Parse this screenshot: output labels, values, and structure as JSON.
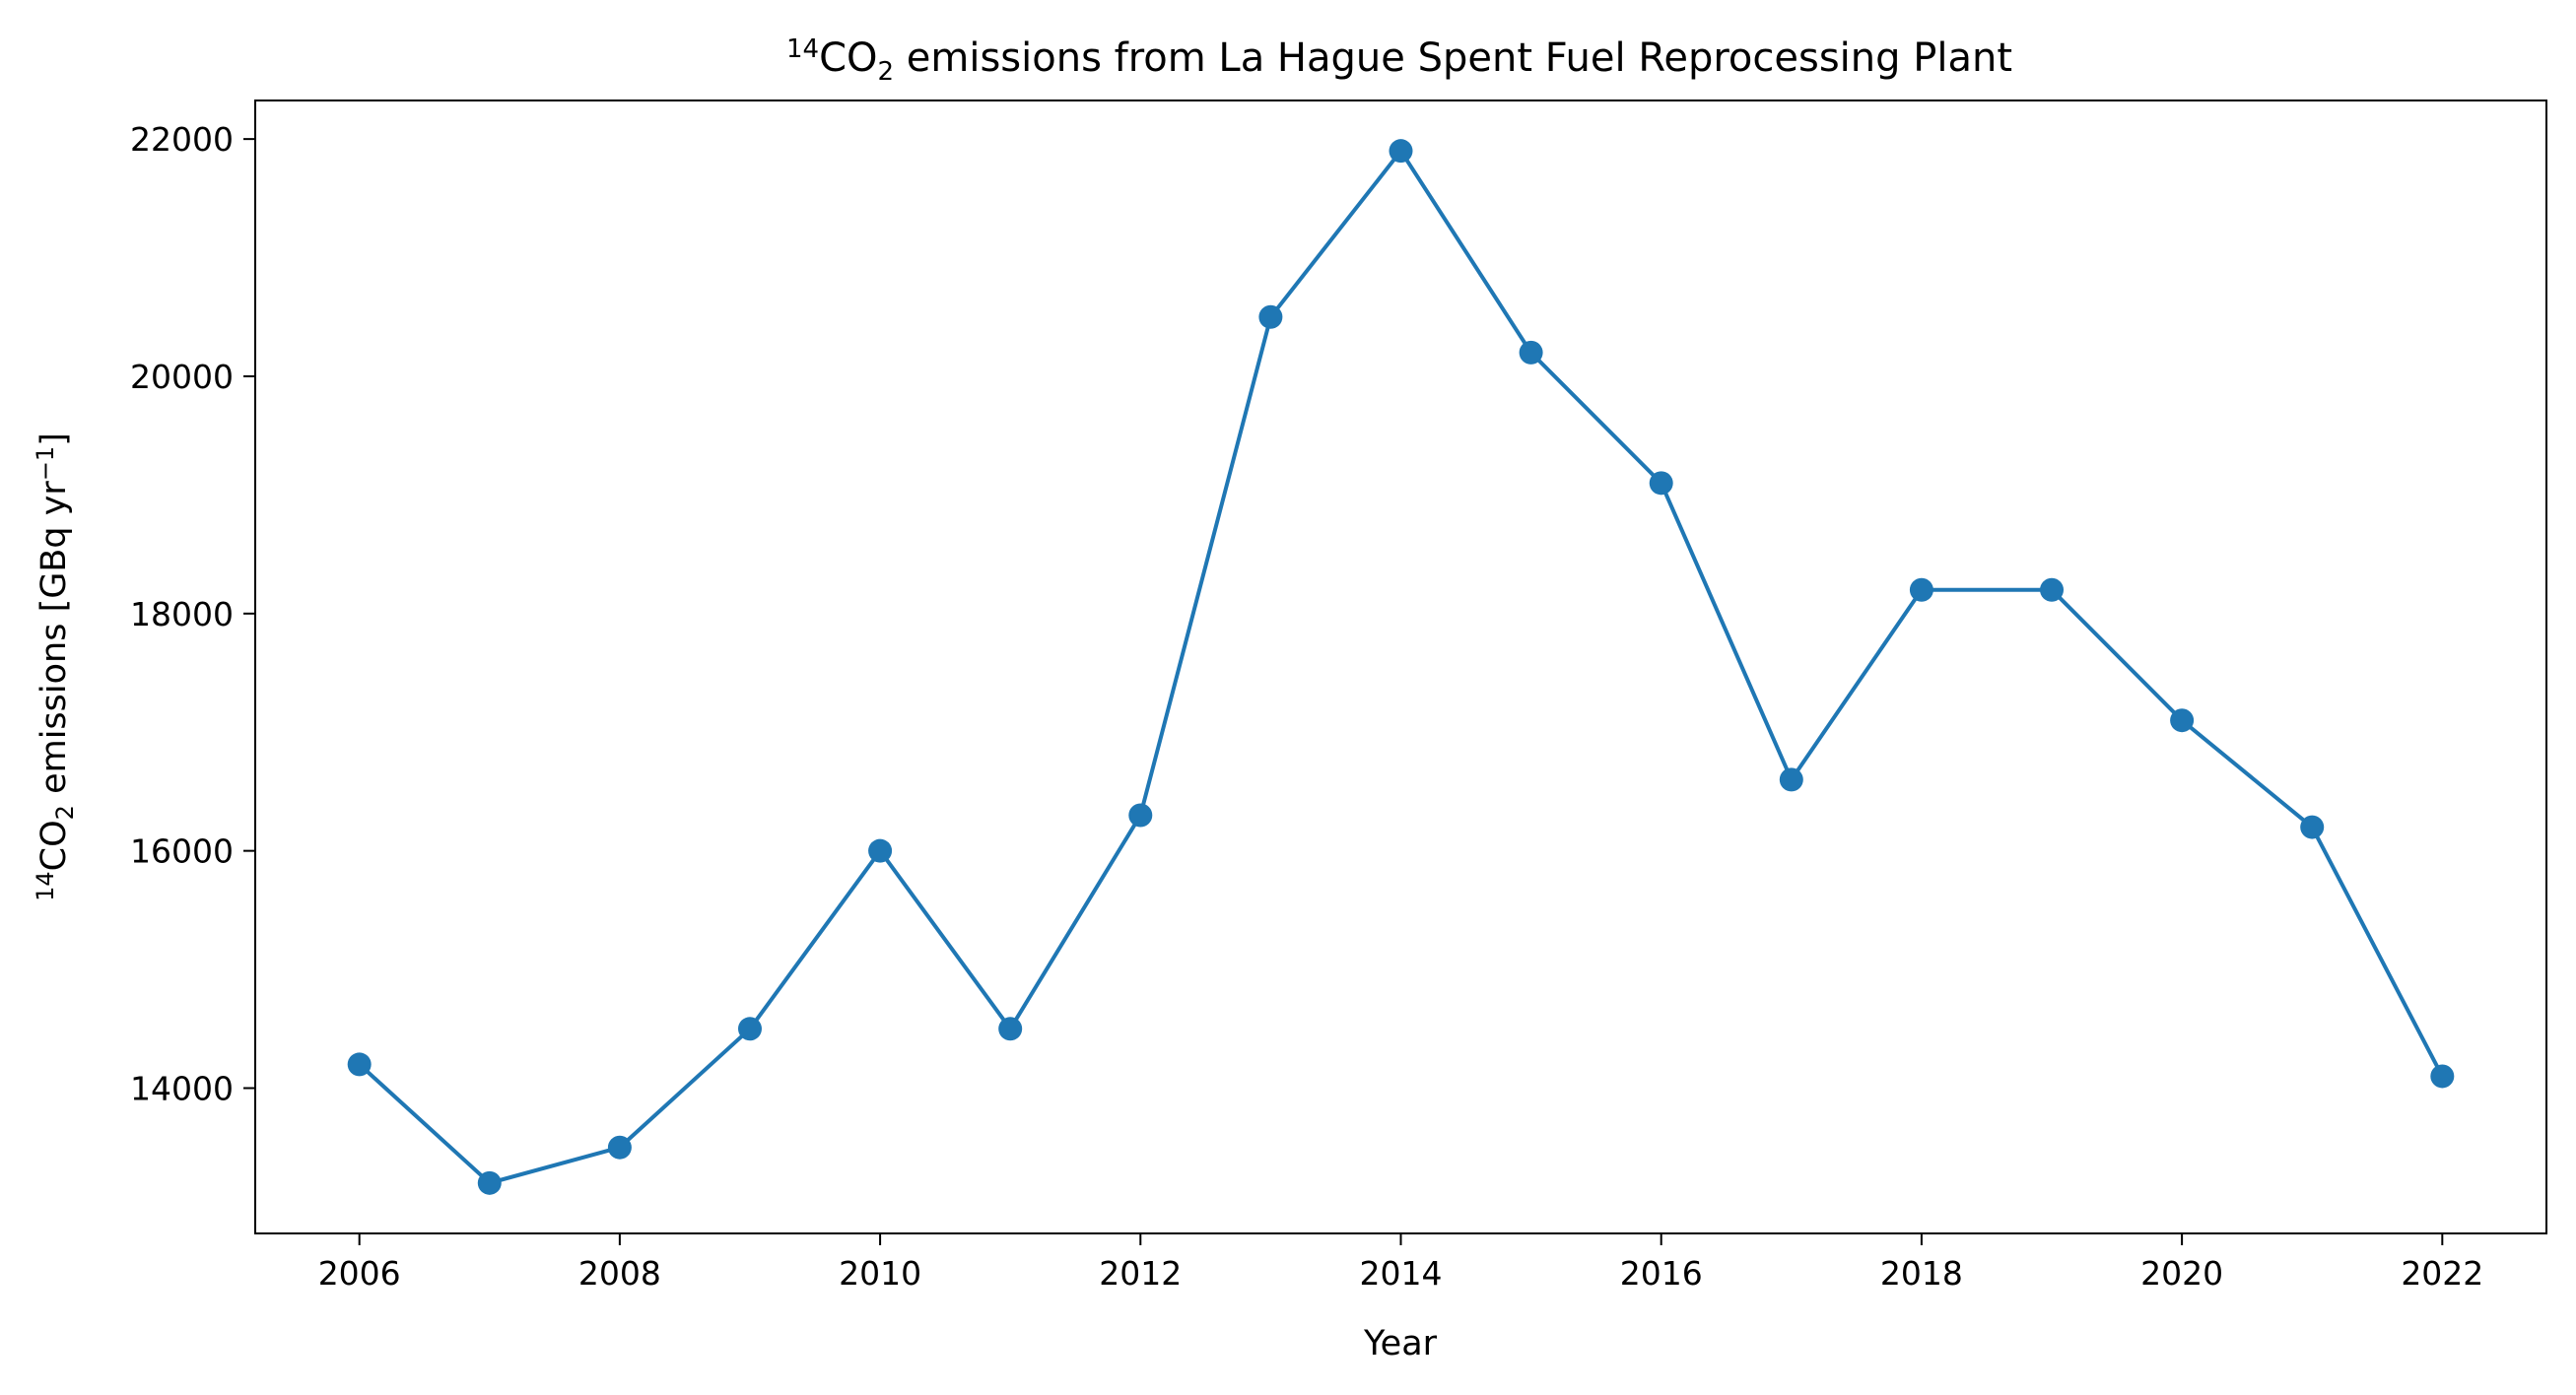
{
  "chart_data": {
    "type": "line",
    "title": {
      "superscript": "14",
      "species": "CO",
      "subscript": "2",
      "rest": " emissions from La Hague Spent Fuel Reprocessing Plant"
    },
    "xlabel": "Year",
    "ylabel": {
      "superscript": "14",
      "species": "CO",
      "subscript": "2",
      "rest": " emissions [GBq yr",
      "unit_exponent": "−1",
      "close": "]"
    },
    "x": [
      2006,
      2007,
      2008,
      2009,
      2010,
      2011,
      2012,
      2013,
      2014,
      2015,
      2016,
      2017,
      2018,
      2019,
      2020,
      2021,
      2022
    ],
    "series": [
      {
        "values": [
          14200,
          13200,
          13500,
          14500,
          16000,
          14500,
          16300,
          20500,
          21900,
          20200,
          19100,
          16600,
          18200,
          18200,
          17100,
          16200,
          14100
        ],
        "color": "#1f77b4",
        "marker": "circle"
      }
    ],
    "xticks": [
      "2006",
      "2008",
      "2010",
      "2012",
      "2014",
      "2016",
      "2018",
      "2020",
      "2022"
    ],
    "yticks": [
      "14000",
      "16000",
      "18000",
      "20000",
      "22000"
    ],
    "xlim": [
      2005.2,
      2022.8
    ],
    "ylim": [
      12775,
      22325
    ],
    "grid": false,
    "legend": "none"
  }
}
